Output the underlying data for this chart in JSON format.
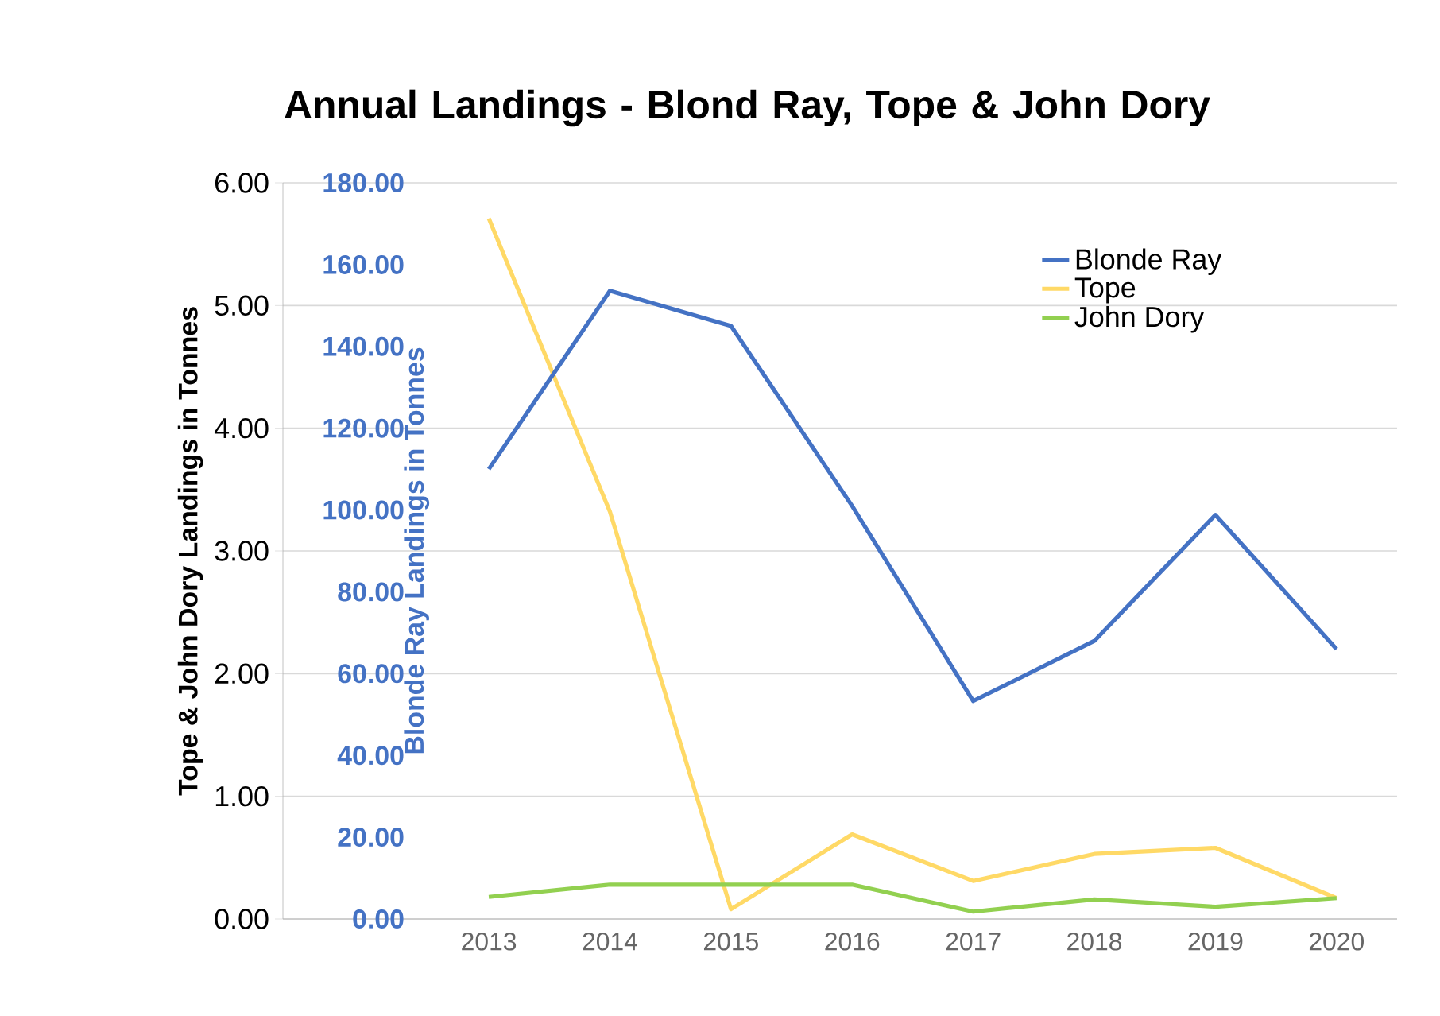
{
  "chart_data": {
    "type": "line",
    "title": "Annual Landings - Blond Ray, Tope & John Dory",
    "ylabel": "Tope & John Dory Landings in Tonnes",
    "y2label": "Blonde Ray Landings in Tonnes",
    "categories": [
      "2013",
      "2014",
      "2015",
      "2016",
      "2017",
      "2018",
      "2019",
      "2020"
    ],
    "series": [
      {
        "name": "Blonde Ray",
        "color": "#4472c4",
        "axis": "y2",
        "values": [
          110,
          153.6,
          145,
          101,
          53.3,
          68,
          98.8,
          66
        ]
      },
      {
        "name": "Tope",
        "color": "#ffd966",
        "values": [
          5.71,
          3.32,
          0.08,
          0.69,
          0.31,
          0.53,
          0.58,
          0.17
        ]
      },
      {
        "name": "John Dory",
        "color": "#92d050",
        "values": [
          0.18,
          0.28,
          0.28,
          0.28,
          0.06,
          0.16,
          0.1,
          0.17
        ]
      }
    ],
    "ylim": [
      0,
      6
    ],
    "yticks": [
      {
        "value": 0,
        "label": "0.00"
      },
      {
        "value": 1,
        "label": "1.00"
      },
      {
        "value": 2,
        "label": "2.00"
      },
      {
        "value": 3,
        "label": "3.00"
      },
      {
        "value": 4,
        "label": "4.00"
      },
      {
        "value": 5,
        "label": "5.00"
      },
      {
        "value": 6,
        "label": "6.00"
      }
    ],
    "y2lim": [
      0,
      180
    ],
    "y2ticks": [
      {
        "value": 0,
        "label": "0.00"
      },
      {
        "value": 20,
        "label": "20.00"
      },
      {
        "value": 40,
        "label": "40.00"
      },
      {
        "value": 60,
        "label": "60.00"
      },
      {
        "value": 80,
        "label": "80.00"
      },
      {
        "value": 100,
        "label": "100.00"
      },
      {
        "value": 120,
        "label": "120.00"
      },
      {
        "value": 140,
        "label": "140.00"
      },
      {
        "value": 160,
        "label": "160.00"
      },
      {
        "value": 180,
        "label": "180.00"
      }
    ],
    "grid": "y",
    "legend": "top right",
    "line_style": "solid"
  }
}
